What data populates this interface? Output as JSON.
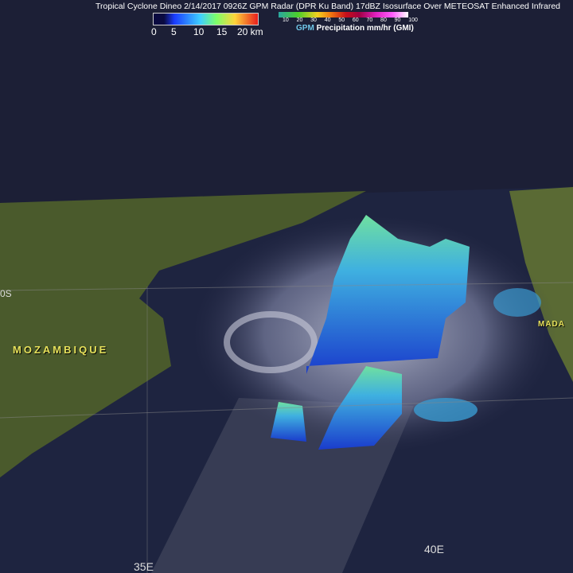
{
  "title": "Tropical Cyclone Dineo 2/14/2017 0926Z GPM Radar (DPR Ku Band) 17dBZ Isosurface Over METEOSAT Enhanced Infrared",
  "height_legend": {
    "ticks": [
      "0",
      "5",
      "10",
      "15",
      "20 km"
    ],
    "colors": [
      "#0a0a40",
      "#1a3cff",
      "#3fd0ff",
      "#7cff6a",
      "#ffd43a",
      "#e81d1d"
    ]
  },
  "precip_legend": {
    "ticks": [
      "10",
      "20",
      "30",
      "40",
      "50",
      "60",
      "70",
      "80",
      "90",
      "100"
    ],
    "label_prefix": "GPM",
    "label": "Precipitation mm/hr (GMI)",
    "prefix_color": "#6fc7e8",
    "colors": [
      "#2aa7a0",
      "#4ccf2a",
      "#f2d020",
      "#f27a10",
      "#c8101a",
      "#a00040",
      "#e020c0",
      "#ff60ff",
      "#ffffff"
    ]
  },
  "map_labels": {
    "country": "MOZAMBIQUE",
    "country2": "MADA",
    "lat": "0S",
    "lon1": "35E",
    "lon2": "40E"
  }
}
